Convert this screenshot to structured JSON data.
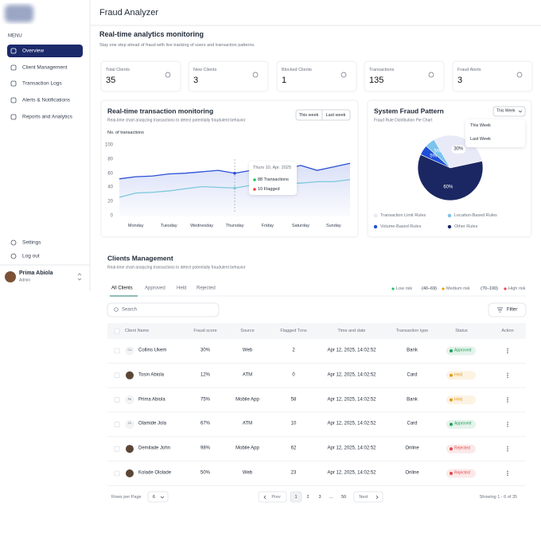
{
  "sidebar": {
    "menu_label": "MENU",
    "items": [
      "Overview",
      "Client Management",
      "Transaction Logs",
      "Alerts & Notifications",
      "Reports and Analytics"
    ],
    "bottom_items": [
      "Settings",
      "Log out"
    ],
    "user": {
      "name": "Prima Abiola",
      "role": "Admin"
    }
  },
  "header": {
    "title": "Fraud Analyzer"
  },
  "analytics": {
    "title": "Real-time analytics monitoring",
    "subtitle": "Stay one step ahead of fraud with live tracking of users and transaction patterns."
  },
  "stats": [
    {
      "label": "Total Clients",
      "value": 35
    },
    {
      "label": "New Clients",
      "value": 3
    },
    {
      "label": "Blocked Clients",
      "value": 1
    },
    {
      "label": "Transactions",
      "value": 135
    },
    {
      "label": "Fraud Alerts",
      "value": 3
    }
  ],
  "chart_data": [
    {
      "type": "line",
      "title": "Real-time transaction monitoring",
      "subtitle": "Real-time chart analyzing transactions to detect potentially fraudulent behavior",
      "y_label": "No. of transactions",
      "buttons": [
        "This week",
        "Last week"
      ],
      "categories": [
        null,
        "Monday",
        null,
        "Tuesday",
        null,
        "Wednesday",
        null,
        "Thursday",
        null,
        "Friday",
        null,
        "Saturday",
        null,
        "Sunday",
        null
      ],
      "series": [
        {
          "color": "#2b50d6",
          "values": [
            53,
            56,
            57,
            60,
            61,
            63,
            65,
            61,
            65,
            66,
            66,
            72,
            65,
            70,
            75
          ]
        },
        {
          "color": "#7cc8dc",
          "values": [
            27,
            33,
            34,
            36,
            39,
            42,
            41,
            40,
            44,
            46,
            47,
            47,
            49,
            49,
            52
          ]
        }
      ],
      "ylim": [
        0,
        100
      ],
      "yticks": [
        0,
        20,
        40,
        60,
        80,
        100
      ],
      "tooltip": {
        "date": "Thurs 10, Apr. 2025",
        "lines": [
          "88 Transactions",
          "10 Flagged"
        ],
        "colors": [
          "#22c55e",
          "#ef4444"
        ]
      }
    },
    {
      "type": "pie",
      "title": "System Fraud Pattern",
      "subtitle": "Fraud Rule Distribution Pie Chart",
      "dropdown": "This Week",
      "dropdown_options": [
        "This Week",
        "Last Week"
      ],
      "categories": [
        "Transaction Limit Rules",
        "Location-Based Rules",
        "Volume-Based Rules",
        "Other Rules"
      ],
      "values": [
        30,
        5,
        5,
        60
      ],
      "value_labels": [
        "30%",
        "5%",
        "5%",
        "60%"
      ],
      "colors": [
        "#e8eaf8",
        "#7cc3ef",
        "#1e4fd8",
        "#1a2762"
      ]
    }
  ],
  "clients": {
    "title": "Clients Management",
    "subtitle": "Real-time chart analyzing transactions to detect potentially fraudulent behavior",
    "tabs": [
      "All Clients",
      "Approved",
      "Held",
      "Rejected"
    ],
    "risk_legend": [
      "Low risk",
      "(40–69)",
      "Medium risk",
      "(70–100)",
      "High risk"
    ],
    "risk_colors": [
      "#22c55e",
      "#f59e0b",
      "#ef4444"
    ],
    "search_placeholder": "Search",
    "filter": "Filter",
    "columns": [
      "Client Name",
      "Fraud score",
      "Source",
      "Flagged Txns",
      "Time and date",
      "Transaction type",
      "Status",
      "Action"
    ],
    "rows": [
      {
        "initials": "CU",
        "name": "Collins Ukem",
        "score": "30%",
        "source": "Web",
        "flagged": "2",
        "time": "Apr 12, 2025, 14:02:52",
        "type": "Bank",
        "status": "Approved",
        "status_color": "#22a05a"
      },
      {
        "name": "Tosin Abiola",
        "score": "12%",
        "source": "ATM",
        "flagged": "0",
        "time": "Apr 12, 2025, 14:02:52",
        "type": "Card",
        "status": "Held",
        "status_color": "#e59a19"
      },
      {
        "initials": "PA",
        "name": "Prima Abiola",
        "score": "75%",
        "source": "Mobile App",
        "flagged": "58",
        "time": "Apr 12, 2025, 14:02:52",
        "type": "Bank",
        "status": "Held",
        "status_color": "#e59a19"
      },
      {
        "initials": "OJ",
        "name": "Olamide Jola",
        "score": "67%",
        "source": "ATM",
        "flagged": "10",
        "time": "Apr 12, 2025, 14:02:52",
        "type": "Card",
        "status": "Approved",
        "status_color": "#22a05a"
      },
      {
        "name": "Demilade John",
        "score": "98%",
        "source": "Mobile App",
        "flagged": "62",
        "time": "Apr 12, 2025, 14:02:52",
        "type": "Online",
        "status": "Rejected",
        "status_color": "#e04848"
      },
      {
        "name": "Kolade Ololade",
        "score": "50%",
        "source": "Web",
        "flagged": "23",
        "time": "Apr 12, 2025, 14:02:52",
        "type": "Online",
        "status": "Rejected",
        "status_color": "#e04848"
      }
    ],
    "pagination": {
      "rows_per_page_label": "Rows per Page",
      "rows_per_page": 6,
      "prev": "Prev",
      "pages": [
        "1",
        "2",
        "3",
        "...",
        "50"
      ],
      "next": "Next",
      "showing": "Showing 1 - 6 of 35"
    }
  }
}
